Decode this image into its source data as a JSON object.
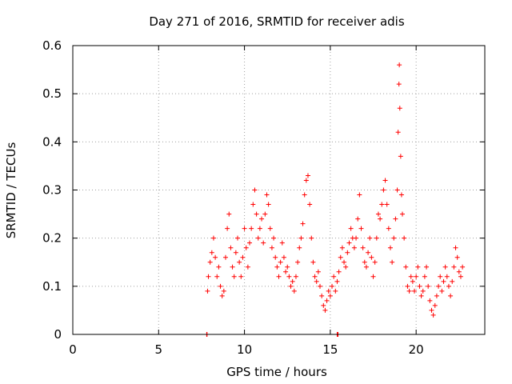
{
  "chart_data": {
    "type": "scatter",
    "title": "Day 271 of 2016, SRMTID for receiver adis",
    "xlabel": "GPS time / hours",
    "ylabel": "SRMTID / TECUs",
    "xlim": [
      0,
      24
    ],
    "ylim": [
      0,
      0.6
    ],
    "x_ticks": [
      0,
      5,
      10,
      15,
      20
    ],
    "y_ticks": [
      0,
      0.1,
      0.2,
      0.3,
      0.4,
      0.5,
      0.6
    ],
    "x_tick_labels": [
      "0",
      "5",
      "10",
      "15",
      "20"
    ],
    "y_tick_labels": [
      "0",
      "0.1",
      "0.2",
      "0.3",
      "0.4",
      "0.5",
      "0.6"
    ],
    "grid": true,
    "marker": "+",
    "series": [
      {
        "name": "SRMTID",
        "color": "#ff0000",
        "points": [
          [
            7.8,
            0.0
          ],
          [
            7.82,
            0.0
          ],
          [
            15.4,
            0.0
          ],
          [
            15.45,
            0.0
          ],
          [
            7.85,
            0.09
          ],
          [
            7.9,
            0.12
          ],
          [
            8.0,
            0.15
          ],
          [
            8.1,
            0.17
          ],
          [
            8.2,
            0.2
          ],
          [
            8.3,
            0.16
          ],
          [
            8.4,
            0.12
          ],
          [
            8.5,
            0.14
          ],
          [
            8.6,
            0.1
          ],
          [
            8.7,
            0.08
          ],
          [
            8.8,
            0.09
          ],
          [
            8.9,
            0.16
          ],
          [
            9.0,
            0.22
          ],
          [
            9.1,
            0.25
          ],
          [
            9.2,
            0.18
          ],
          [
            9.3,
            0.14
          ],
          [
            9.4,
            0.12
          ],
          [
            9.5,
            0.17
          ],
          [
            9.6,
            0.2
          ],
          [
            9.7,
            0.15
          ],
          [
            9.8,
            0.12
          ],
          [
            9.9,
            0.16
          ],
          [
            10.0,
            0.22
          ],
          [
            10.1,
            0.18
          ],
          [
            10.2,
            0.14
          ],
          [
            10.3,
            0.19
          ],
          [
            10.4,
            0.22
          ],
          [
            10.5,
            0.27
          ],
          [
            10.6,
            0.3
          ],
          [
            10.7,
            0.25
          ],
          [
            10.8,
            0.2
          ],
          [
            10.9,
            0.22
          ],
          [
            11.0,
            0.24
          ],
          [
            11.1,
            0.19
          ],
          [
            11.2,
            0.25
          ],
          [
            11.3,
            0.29
          ],
          [
            11.4,
            0.27
          ],
          [
            11.5,
            0.22
          ],
          [
            11.6,
            0.18
          ],
          [
            11.7,
            0.2
          ],
          [
            11.8,
            0.16
          ],
          [
            11.9,
            0.14
          ],
          [
            12.0,
            0.12
          ],
          [
            12.1,
            0.15
          ],
          [
            12.2,
            0.19
          ],
          [
            12.3,
            0.16
          ],
          [
            12.4,
            0.13
          ],
          [
            12.5,
            0.14
          ],
          [
            12.6,
            0.12
          ],
          [
            12.7,
            0.1
          ],
          [
            12.8,
            0.11
          ],
          [
            12.9,
            0.09
          ],
          [
            13.0,
            0.12
          ],
          [
            13.1,
            0.15
          ],
          [
            13.2,
            0.18
          ],
          [
            13.3,
            0.2
          ],
          [
            13.4,
            0.23
          ],
          [
            13.5,
            0.29
          ],
          [
            13.6,
            0.32
          ],
          [
            13.7,
            0.33
          ],
          [
            13.8,
            0.27
          ],
          [
            13.9,
            0.2
          ],
          [
            14.0,
            0.15
          ],
          [
            14.1,
            0.12
          ],
          [
            14.2,
            0.11
          ],
          [
            14.3,
            0.13
          ],
          [
            14.4,
            0.1
          ],
          [
            14.5,
            0.08
          ],
          [
            14.6,
            0.06
          ],
          [
            14.7,
            0.05
          ],
          [
            14.8,
            0.07
          ],
          [
            14.9,
            0.09
          ],
          [
            15.0,
            0.08
          ],
          [
            15.1,
            0.1
          ],
          [
            15.2,
            0.12
          ],
          [
            15.3,
            0.09
          ],
          [
            15.4,
            0.11
          ],
          [
            15.5,
            0.13
          ],
          [
            15.6,
            0.16
          ],
          [
            15.7,
            0.18
          ],
          [
            15.8,
            0.15
          ],
          [
            15.9,
            0.14
          ],
          [
            16.0,
            0.17
          ],
          [
            16.1,
            0.19
          ],
          [
            16.2,
            0.22
          ],
          [
            16.3,
            0.2
          ],
          [
            16.4,
            0.18
          ],
          [
            16.5,
            0.2
          ],
          [
            16.6,
            0.24
          ],
          [
            16.7,
            0.29
          ],
          [
            16.8,
            0.22
          ],
          [
            16.9,
            0.18
          ],
          [
            17.0,
            0.15
          ],
          [
            17.1,
            0.14
          ],
          [
            17.2,
            0.17
          ],
          [
            17.3,
            0.2
          ],
          [
            17.4,
            0.16
          ],
          [
            17.5,
            0.12
          ],
          [
            17.6,
            0.15
          ],
          [
            17.7,
            0.2
          ],
          [
            17.8,
            0.25
          ],
          [
            17.9,
            0.24
          ],
          [
            18.0,
            0.27
          ],
          [
            18.1,
            0.3
          ],
          [
            18.2,
            0.32
          ],
          [
            18.3,
            0.27
          ],
          [
            18.4,
            0.22
          ],
          [
            18.5,
            0.18
          ],
          [
            18.6,
            0.15
          ],
          [
            18.7,
            0.2
          ],
          [
            18.8,
            0.24
          ],
          [
            18.9,
            0.3
          ],
          [
            18.95,
            0.42
          ],
          [
            19.0,
            0.52
          ],
          [
            19.02,
            0.56
          ],
          [
            19.05,
            0.47
          ],
          [
            19.1,
            0.37
          ],
          [
            19.15,
            0.29
          ],
          [
            19.2,
            0.25
          ],
          [
            19.3,
            0.2
          ],
          [
            19.4,
            0.14
          ],
          [
            19.5,
            0.1
          ],
          [
            19.6,
            0.09
          ],
          [
            19.7,
            0.12
          ],
          [
            19.8,
            0.11
          ],
          [
            19.9,
            0.09
          ],
          [
            20.0,
            0.12
          ],
          [
            20.1,
            0.14
          ],
          [
            20.2,
            0.1
          ],
          [
            20.3,
            0.08
          ],
          [
            20.4,
            0.09
          ],
          [
            20.5,
            0.12
          ],
          [
            20.6,
            0.14
          ],
          [
            20.7,
            0.1
          ],
          [
            20.8,
            0.07
          ],
          [
            20.9,
            0.05
          ],
          [
            21.0,
            0.04
          ],
          [
            21.1,
            0.06
          ],
          [
            21.2,
            0.08
          ],
          [
            21.3,
            0.1
          ],
          [
            21.4,
            0.12
          ],
          [
            21.5,
            0.09
          ],
          [
            21.6,
            0.11
          ],
          [
            21.7,
            0.14
          ],
          [
            21.8,
            0.12
          ],
          [
            21.9,
            0.1
          ],
          [
            22.0,
            0.08
          ],
          [
            22.1,
            0.11
          ],
          [
            22.2,
            0.14
          ],
          [
            22.3,
            0.18
          ],
          [
            22.4,
            0.16
          ],
          [
            22.5,
            0.13
          ],
          [
            22.6,
            0.12
          ],
          [
            22.7,
            0.14
          ]
        ]
      }
    ]
  }
}
